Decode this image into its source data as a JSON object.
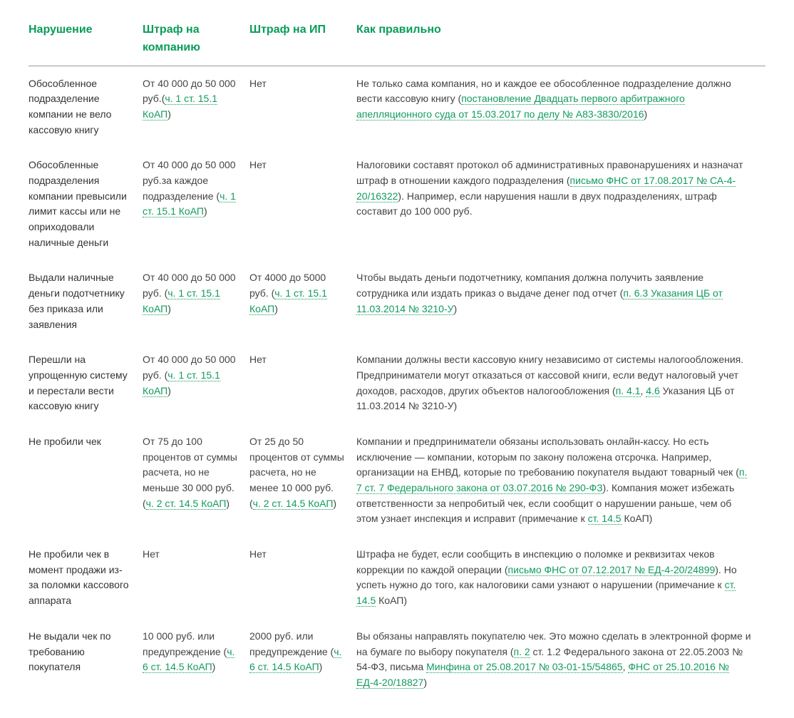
{
  "colors": {
    "heading": "#0a9b5a",
    "link": "#129b5e",
    "border": "#999999",
    "text": "#444444",
    "background": "#ffffff"
  },
  "headers": {
    "col1": "Нарушение",
    "col2": "Штраф на компанию",
    "col3": "Штраф на ИП",
    "col4": "Как правильно"
  },
  "rows": [
    {
      "violation": "Обособленное подразделение компании не вело кассовую книгу",
      "company": [
        {
          "t": "От 40 000 до 50 000 руб.("
        },
        {
          "t": "ч. 1 ст. 15.1 КоАП",
          "link": true
        },
        {
          "t": ")"
        }
      ],
      "ip": [
        {
          "t": "Нет"
        }
      ],
      "correct": [
        {
          "t": "Не только сама компания, но и каждое ее обособленное подразделение должно вести кассовую книгу ("
        },
        {
          "t": "постановление Двадцать первого арбитражного апелляционного суда от 15.03.2017 по делу № А83-3830/2016",
          "link": true
        },
        {
          "t": ")"
        }
      ]
    },
    {
      "violation": "Обособленные подразделения компании превысили лимит кассы или не оприходовали наличные деньги",
      "company": [
        {
          "t": "От 40 000 до 50 000 руб.за каждое подразделение ("
        },
        {
          "t": "ч. 1 ст. 15.1 КоАП",
          "link": true
        },
        {
          "t": ")"
        }
      ],
      "ip": [
        {
          "t": "Нет"
        }
      ],
      "correct": [
        {
          "t": "Налоговики составят протокол об административных правонарушениях и назначат штраф в отношении каждого подразделения ("
        },
        {
          "t": "письмо ФНС от 17.08.2017 № СА-4-20/16322",
          "link": true
        },
        {
          "t": "). Например, если нарушения нашли в двух подразделениях, штраф составит до 100 000 руб."
        }
      ]
    },
    {
      "violation": "Выдали наличные деньги подотчетнику без приказа или заявления",
      "company": [
        {
          "t": "От 40 000 до 50 000 руб. ("
        },
        {
          "t": "ч. 1 ст. 15.1 КоАП",
          "link": true
        },
        {
          "t": ")"
        }
      ],
      "ip": [
        {
          "t": "От 4000 до 5000 руб. ("
        },
        {
          "t": "ч. 1 ст. 15.1 КоАП",
          "link": true
        },
        {
          "t": ")"
        }
      ],
      "correct": [
        {
          "t": "Чтобы выдать деньги подотчетнику, компания должна получить заявление сотрудника или издать приказ о выдаче денег под отчет ("
        },
        {
          "t": "п. 6.3 Указания ЦБ от 11.03.2014 № 3210-У",
          "link": true
        },
        {
          "t": ")"
        }
      ]
    },
    {
      "violation": "Перешли на упрощенную систему и перестали вести кассовую книгу",
      "company": [
        {
          "t": "От 40 000 до 50 000 руб. ("
        },
        {
          "t": "ч. 1 ст. 15.1 КоАП",
          "link": true
        },
        {
          "t": ")"
        }
      ],
      "ip": [
        {
          "t": "Нет"
        }
      ],
      "correct": [
        {
          "t": "Компании должны вести кассовую книгу независимо от системы налогообложения. Предприниматели могут отказаться от кассовой книги, если ведут налоговый учет доходов, расходов, других объектов налогообложения ("
        },
        {
          "t": "п. 4.1",
          "link": true
        },
        {
          "t": ", "
        },
        {
          "t": "4.6",
          "link": true
        },
        {
          "t": " Указания ЦБ от 11.03.2014 № 3210-У)"
        }
      ]
    },
    {
      "violation": "Не пробили чек",
      "company": [
        {
          "t": "От 75 до 100 процентов от суммы расчета, но не меньше 30 000 руб. ("
        },
        {
          "t": "ч. 2 ст. 14.5 КоАП",
          "link": true
        },
        {
          "t": ")"
        }
      ],
      "ip": [
        {
          "t": "От 25 до 50 процентов от суммы расчета, но не менее 10 000 руб. ("
        },
        {
          "t": "ч. 2 ст. 14.5 КоАП",
          "link": true
        },
        {
          "t": ")"
        }
      ],
      "correct": [
        {
          "t": "Компании и предприниматели обязаны использовать онлайн-кассу. Но есть исключение — компании, которым по закону положена отсрочка. Например, организации на ЕНВД, которые по требованию покупателя выдают товарный чек ("
        },
        {
          "t": "п. 7 ст. 7 Федерального закона от 03.07.2016 № 290-ФЗ",
          "link": true
        },
        {
          "t": "). Компания может избежать ответственности за непробитый чек, если сообщит о нарушении раньше, чем об этом узнает инспекция и исправит (примечание к "
        },
        {
          "t": "ст. 14.5",
          "link": true
        },
        {
          "t": " КоАП)"
        }
      ]
    },
    {
      "violation": "Не пробили чек в момент продажи из-за поломки кассового аппарата",
      "company": [
        {
          "t": "Нет"
        }
      ],
      "ip": [
        {
          "t": "Нет"
        }
      ],
      "correct": [
        {
          "t": "Штрафа не будет, если сообщить в инспекцию о поломке и реквизитах чеков коррекции по каждой операции ("
        },
        {
          "t": "письмо ФНС от 07.12.2017 № ЕД-4-20/24899",
          "link": true
        },
        {
          "t": "). Но успеть нужно до того, как налоговики сами узнают о нарушении (примечание к "
        },
        {
          "t": "ст. 14.5",
          "link": true
        },
        {
          "t": " КоАП)"
        }
      ]
    },
    {
      "violation": "Не выдали чек по требованию покупателя",
      "company": [
        {
          "t": "10 000 руб. или предупреждение ("
        },
        {
          "t": "ч. 6 ст. 14.5 КоАП",
          "link": true
        },
        {
          "t": ")"
        }
      ],
      "ip": [
        {
          "t": "2000 руб. или предупреждение ("
        },
        {
          "t": "ч. 6 ст. 14.5 КоАП",
          "link": true
        },
        {
          "t": ")"
        }
      ],
      "correct": [
        {
          "t": "Вы обязаны направлять покупателю чек. Это можно сделать в электронной форме и на бумаге по выбору покупателя ("
        },
        {
          "t": "п. 2",
          "link": true
        },
        {
          "t": " ст. 1.2 Федерального закона от 22.05.2003 № 54-ФЗ, письма "
        },
        {
          "t": "Минфина от 25.08.2017 № 03-01-15/54865",
          "link": true
        },
        {
          "t": ", "
        },
        {
          "t": "ФНС от 25.10.2016 № ЕД-4-20/18827",
          "link": true
        },
        {
          "t": ")"
        }
      ]
    }
  ]
}
